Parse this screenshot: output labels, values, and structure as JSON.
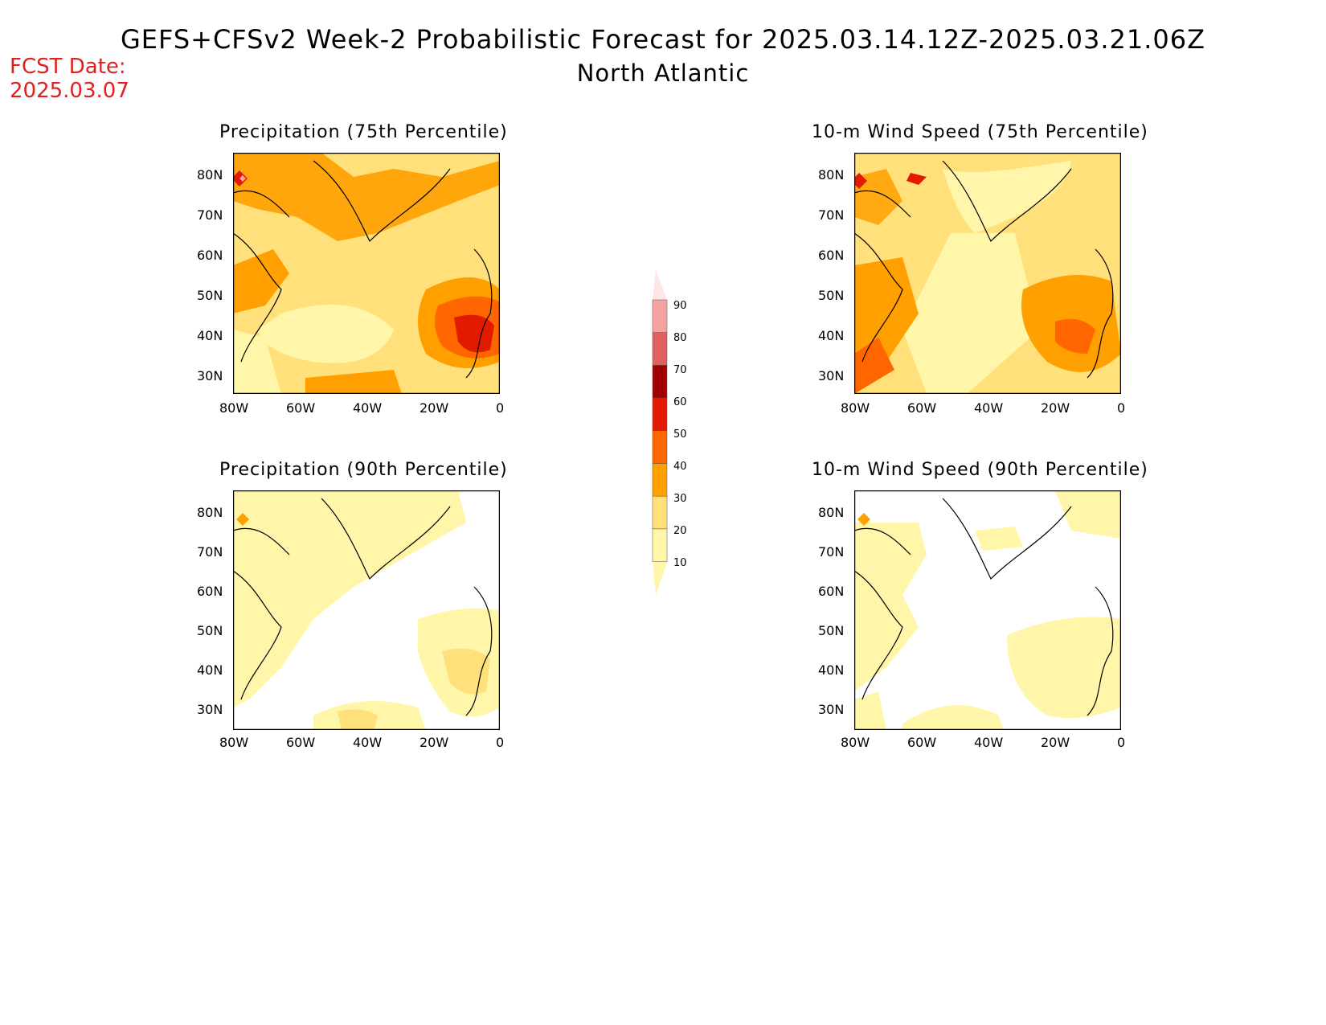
{
  "header": {
    "title": "GEFS+CFSv2 Week-2 Probabilistic Forecast for 2025.03.14.12Z-2025.03.21.06Z",
    "region": "North Atlantic",
    "fcst_label": "FCST Date:",
    "fcst_date": "2025.03.07"
  },
  "axes": {
    "lat_labels": [
      "80N",
      "70N",
      "60N",
      "50N",
      "40N",
      "30N"
    ],
    "lon_labels": [
      "80W",
      "60W",
      "40W",
      "20W",
      "0"
    ]
  },
  "panels": [
    {
      "id": "precip75",
      "title": "Precipitation (75th Percentile)"
    },
    {
      "id": "wind75",
      "title": "10-m Wind Speed (75th Percentile)"
    },
    {
      "id": "precip90",
      "title": "Precipitation (90th Percentile)"
    },
    {
      "id": "wind90",
      "title": "10-m Wind Speed (90th Percentile)"
    }
  ],
  "colorbar": {
    "labels": [
      "90",
      "80",
      "70",
      "60",
      "50",
      "40",
      "30",
      "20",
      "10"
    ],
    "colors": [
      "#ffe6e6",
      "#f4a3a3",
      "#e06060",
      "#a00000",
      "#e21a00",
      "#ff6600",
      "#ffa000",
      "#ffe07a",
      "#fff6aa"
    ]
  }
}
